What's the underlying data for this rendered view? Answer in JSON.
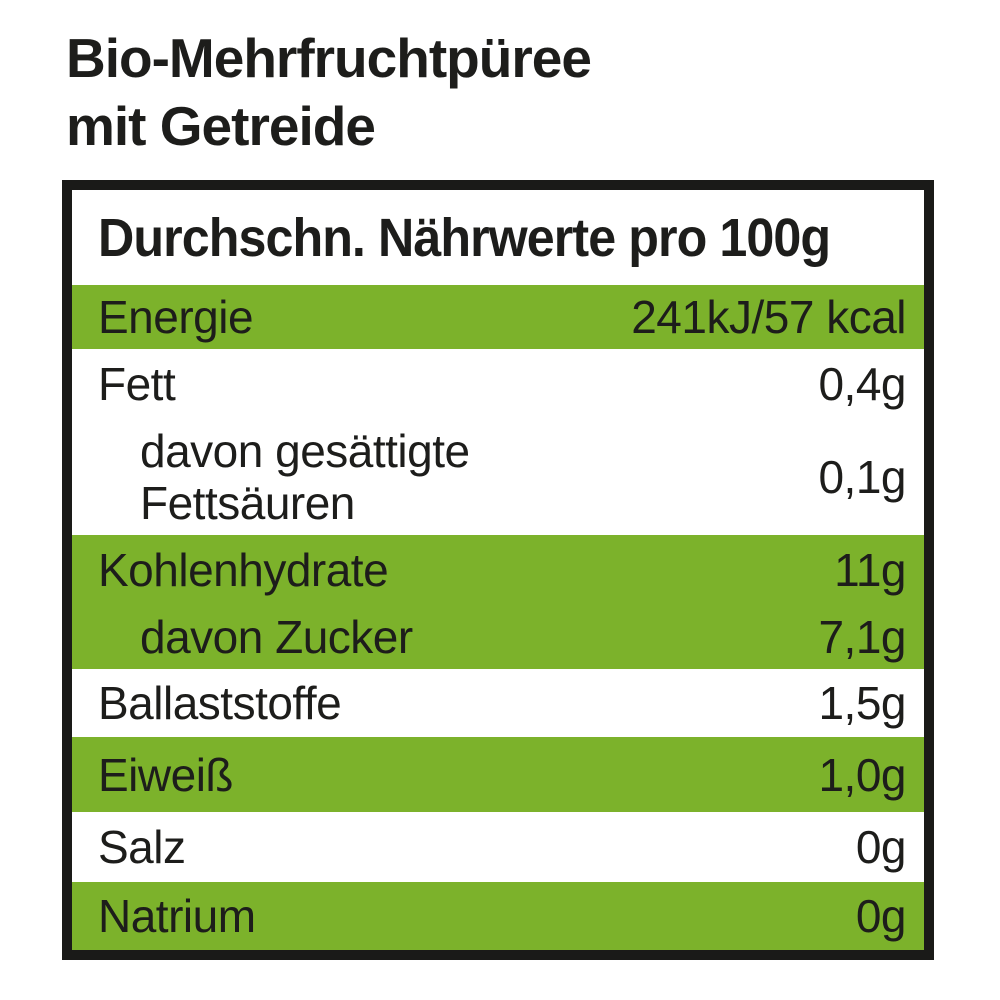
{
  "title": {
    "line1": "Bio-Mehrfruchtpüree",
    "line2": "mit Getreide"
  },
  "table": {
    "header": "Durchschn. Nährwerte pro 100g",
    "rows": [
      {
        "label": "Energie",
        "value": "241kJ/57 kcal",
        "background": "green",
        "indented": false
      },
      {
        "label": "Fett",
        "value": "0,4g",
        "background": "white",
        "indented": false
      },
      {
        "label": "davon gesättigte Fettsäuren",
        "value": "0,1g",
        "background": "white",
        "indented": true
      },
      {
        "label": "Kohlenhydrate",
        "value": "11g",
        "background": "green",
        "indented": false
      },
      {
        "label": "davon Zucker",
        "value": "7,1g",
        "background": "green",
        "indented": true
      },
      {
        "label": "Ballaststoffe",
        "value": "1,5g",
        "background": "white",
        "indented": false
      },
      {
        "label": "Eiweiß",
        "value": "1,0g",
        "background": "green",
        "indented": false
      },
      {
        "label": "Salz",
        "value": "0g",
        "background": "white",
        "indented": false
      },
      {
        "label": "Natrium",
        "value": "0g",
        "background": "green",
        "indented": false
      }
    ]
  },
  "colors": {
    "row_green": "#7CB22B",
    "text_black": "#1D1D1B",
    "border_black": "#1A1A18",
    "background": "#FFFFFF"
  }
}
